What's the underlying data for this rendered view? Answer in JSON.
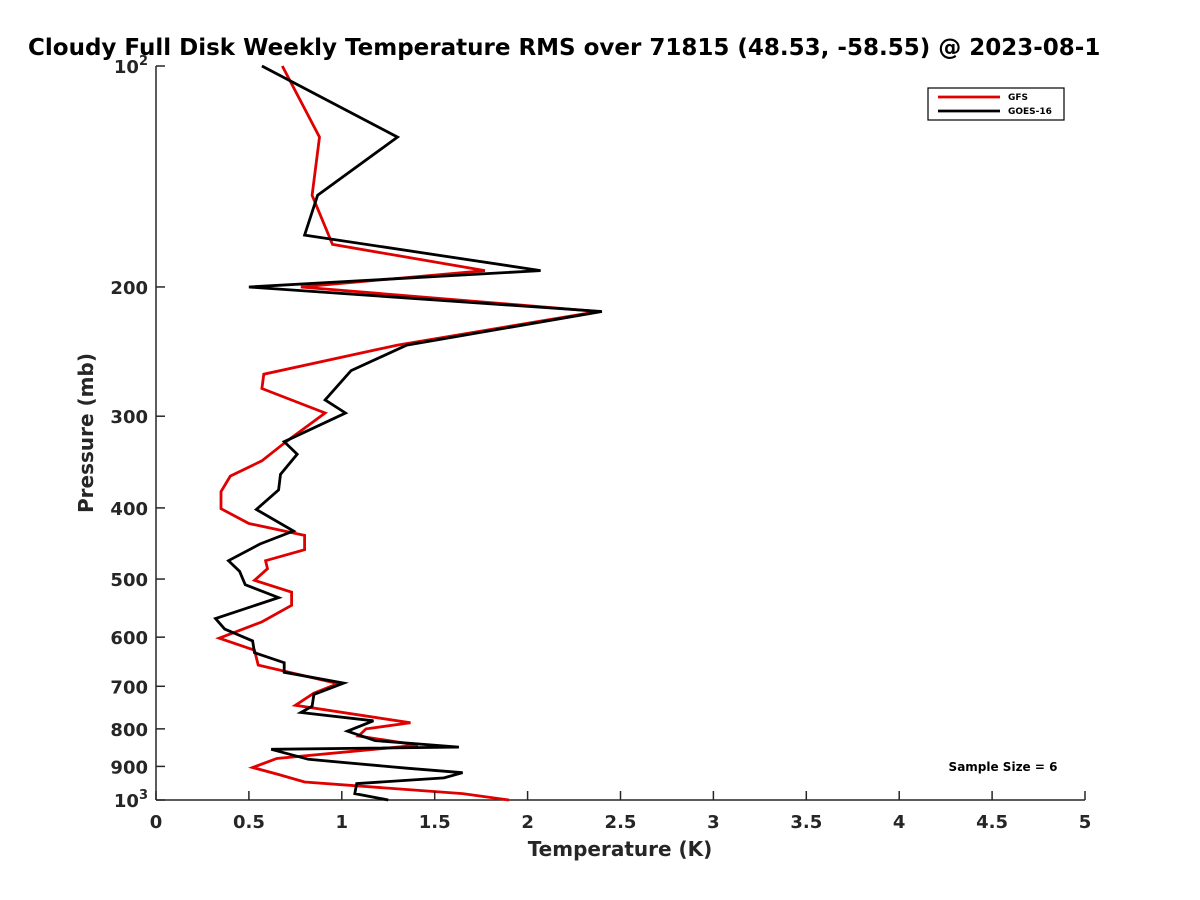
{
  "chart_data": {
    "type": "line",
    "title": "Cloudy Full Disk Weekly Temperature RMS over 71815 (48.53, -58.55) @ 2023-08-1",
    "xlabel": "Temperature (K)",
    "ylabel": "Pressure (mb)",
    "xlim": [
      0,
      5
    ],
    "ylim": [
      1000,
      100
    ],
    "yscale": "log",
    "y_reversed": true,
    "x_ticks": [
      "0",
      "0.5",
      "1",
      "1.5",
      "2",
      "2.5",
      "3",
      "3.5",
      "4",
      "4.5",
      "5"
    ],
    "y_ticks": [
      {
        "value": 100,
        "base": "10",
        "exp": "2"
      },
      {
        "value": 200,
        "label": "200"
      },
      {
        "value": 300,
        "label": "300"
      },
      {
        "value": 400,
        "label": "400"
      },
      {
        "value": 500,
        "label": "500"
      },
      {
        "value": 600,
        "label": "600"
      },
      {
        "value": 700,
        "label": "700"
      },
      {
        "value": 800,
        "label": "800"
      },
      {
        "value": 900,
        "label": "900"
      },
      {
        "value": 1000,
        "base": "10",
        "exp": "3"
      }
    ],
    "legend_position": "top-right",
    "grid": false,
    "annotation": "Sample Size = 6",
    "series": [
      {
        "name": "GFS",
        "color": "#e00000",
        "points": [
          [
            0.68,
            100
          ],
          [
            0.88,
            125
          ],
          [
            0.84,
            150
          ],
          [
            0.95,
            175
          ],
          [
            1.77,
            190
          ],
          [
            0.78,
            200
          ],
          [
            2.38,
            216
          ],
          [
            1.3,
            240
          ],
          [
            0.58,
            263
          ],
          [
            0.57,
            275
          ],
          [
            0.91,
            297
          ],
          [
            0.7,
            325
          ],
          [
            0.57,
            345
          ],
          [
            0.4,
            362
          ],
          [
            0.35,
            380
          ],
          [
            0.35,
            401
          ],
          [
            0.5,
            420
          ],
          [
            0.8,
            436
          ],
          [
            0.8,
            456
          ],
          [
            0.59,
            472
          ],
          [
            0.6,
            484
          ],
          [
            0.53,
            502
          ],
          [
            0.73,
            521
          ],
          [
            0.73,
            543
          ],
          [
            0.57,
            572
          ],
          [
            0.34,
            602
          ],
          [
            0.53,
            625
          ],
          [
            0.55,
            655
          ],
          [
            0.75,
            673
          ],
          [
            0.98,
            694
          ],
          [
            0.85,
            715
          ],
          [
            0.75,
            743
          ],
          [
            1.37,
            785
          ],
          [
            1.13,
            800
          ],
          [
            1.09,
            818
          ],
          [
            1.41,
            842
          ],
          [
            0.65,
            878
          ],
          [
            0.52,
            903
          ],
          [
            0.66,
            923
          ],
          [
            0.8,
            945
          ],
          [
            1.65,
            980
          ],
          [
            1.9,
            1000
          ]
        ]
      },
      {
        "name": "GOES-16",
        "color": "#000000",
        "points": [
          [
            0.57,
            100
          ],
          [
            1.3,
            125
          ],
          [
            0.87,
            150
          ],
          [
            0.8,
            170
          ],
          [
            2.07,
            190
          ],
          [
            0.5,
            200
          ],
          [
            2.4,
            216
          ],
          [
            1.35,
            240
          ],
          [
            1.05,
            260
          ],
          [
            0.91,
            285
          ],
          [
            1.02,
            297
          ],
          [
            0.69,
            325
          ],
          [
            0.76,
            338
          ],
          [
            0.67,
            360
          ],
          [
            0.66,
            378
          ],
          [
            0.54,
            402
          ],
          [
            0.74,
            430
          ],
          [
            0.56,
            448
          ],
          [
            0.39,
            472
          ],
          [
            0.45,
            488
          ],
          [
            0.48,
            509
          ],
          [
            0.66,
            530
          ],
          [
            0.32,
            566
          ],
          [
            0.37,
            585
          ],
          [
            0.52,
            607
          ],
          [
            0.53,
            630
          ],
          [
            0.69,
            650
          ],
          [
            0.69,
            670
          ],
          [
            1.01,
            693
          ],
          [
            0.85,
            718
          ],
          [
            0.84,
            745
          ],
          [
            0.78,
            760
          ],
          [
            1.17,
            780
          ],
          [
            1.03,
            806
          ],
          [
            1.18,
            830
          ],
          [
            1.63,
            847
          ],
          [
            0.62,
            853
          ],
          [
            0.82,
            880
          ],
          [
            1.35,
            905
          ],
          [
            1.65,
            918
          ],
          [
            1.55,
            933
          ],
          [
            1.08,
            950
          ],
          [
            1.07,
            980
          ],
          [
            1.25,
            1000
          ]
        ]
      }
    ]
  }
}
